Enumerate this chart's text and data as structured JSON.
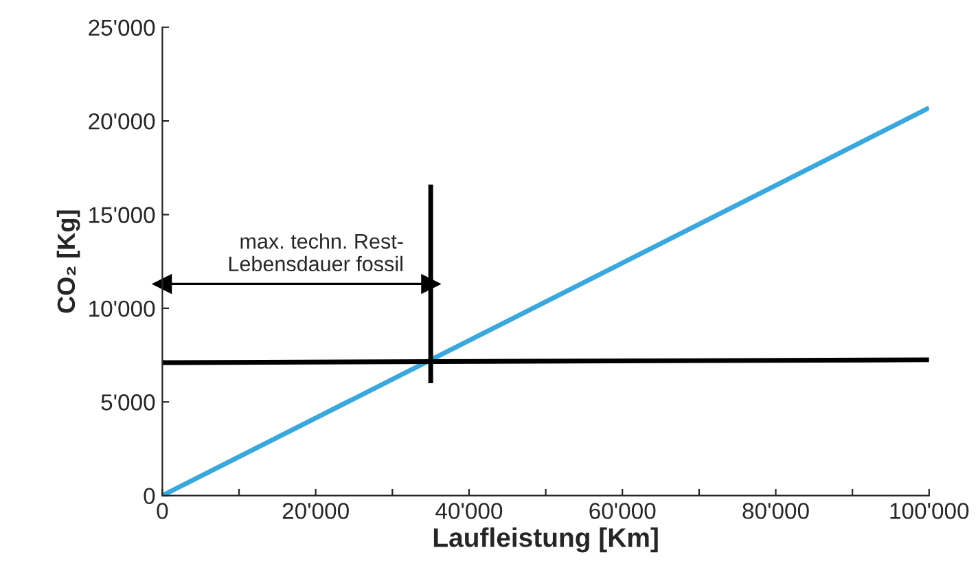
{
  "chart_data": {
    "type": "line",
    "xlabel": "Laufleistung [Km]",
    "ylabel": "CO₂ [Kg]",
    "xlim": [
      0,
      100000
    ],
    "ylim": [
      0,
      25000
    ],
    "xticks": [
      0,
      {
        "value": 10000,
        "label": null
      },
      {
        "value": 20000,
        "label": "20'000"
      },
      {
        "value": 30000,
        "label": null
      },
      {
        "value": 40000,
        "label": "40'000"
      },
      {
        "value": 50000,
        "label": null
      },
      {
        "value": 60000,
        "label": "60'000"
      },
      {
        "value": 70000,
        "label": null
      },
      {
        "value": 80000,
        "label": "80'000"
      },
      {
        "value": 90000,
        "label": null
      },
      {
        "value": 100000,
        "label": "100'000"
      }
    ],
    "yticks": [
      0,
      {
        "value": 5000,
        "label": "5'000"
      },
      {
        "value": 10000,
        "label": "10'000"
      },
      {
        "value": 15000,
        "label": "15'000"
      },
      {
        "value": 20000,
        "label": "20'000"
      },
      {
        "value": 25000,
        "label": "25'000"
      }
    ],
    "grid": false,
    "legend": false,
    "series": [
      {
        "color": "#3ba8dd",
        "x": [
          0,
          100000
        ],
        "values": [
          0,
          20700
        ]
      },
      {
        "color": "#000000",
        "x": [
          0,
          100000
        ],
        "values": [
          7100,
          7250
        ]
      },
      {
        "color": "#000000",
        "x": [
          35000,
          35000
        ],
        "values": [
          6000,
          16600
        ]
      },
      {
        "color": "#000000",
        "x": [
          0,
          35000
        ],
        "values": [
          11300,
          11300
        ],
        "marker": "triangle"
      }
    ],
    "annotations": [
      "max. techn. Rest-\nLebensdauer fossil"
    ]
  }
}
